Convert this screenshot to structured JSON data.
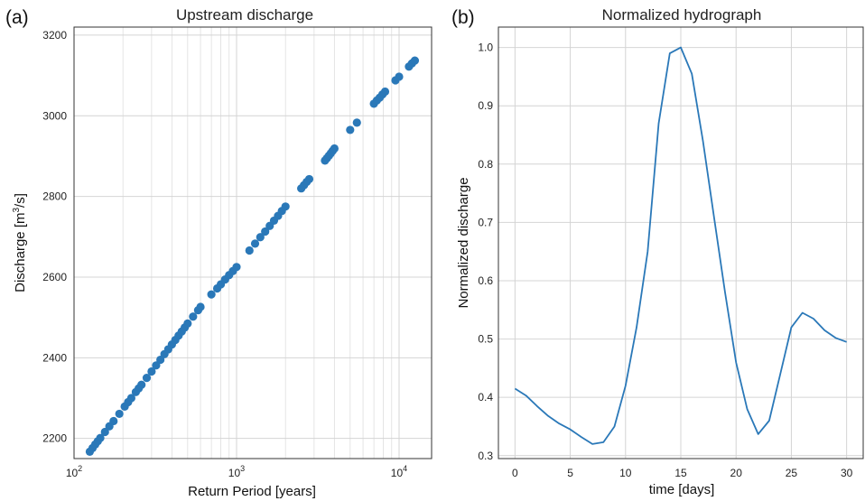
{
  "chart_data": [
    {
      "type": "scatter",
      "panel_label": "(a)",
      "title": "Upstream discharge",
      "xlabel": "Return Period [years]",
      "ylabel_main": "Discharge [m",
      "ylabel_sup": "3",
      "ylabel_end": "/s]",
      "xscale": "log",
      "xlim": [
        100,
        15850
      ],
      "ylim": [
        2150,
        3220
      ],
      "grid": true,
      "color": "#2a78b8",
      "xticks": [
        {
          "value": 100,
          "base": "10",
          "exp": "2"
        },
        {
          "value": 1000,
          "base": "10",
          "exp": "3"
        },
        {
          "value": 10000,
          "base": "10",
          "exp": "4"
        }
      ],
      "yticks": [
        2200,
        2400,
        2600,
        2800,
        3000,
        3200
      ],
      "x": [
        125,
        130,
        135,
        140,
        145,
        155,
        165,
        175,
        190,
        205,
        215,
        225,
        240,
        250,
        260,
        280,
        300,
        320,
        340,
        360,
        380,
        400,
        420,
        440,
        460,
        480,
        500,
        540,
        580,
        600,
        700,
        760,
        800,
        850,
        900,
        950,
        1000,
        1200,
        1300,
        1400,
        1500,
        1600,
        1700,
        1800,
        1900,
        2000,
        2500,
        2600,
        2700,
        2800,
        3500,
        3600,
        3700,
        3800,
        3900,
        4000,
        5000,
        5500,
        7000,
        7300,
        7600,
        7900,
        8200,
        9500,
        10000,
        11500,
        12000,
        12500
      ],
      "y": [
        2167,
        2176,
        2185,
        2193,
        2201,
        2216,
        2230,
        2243,
        2261,
        2279,
        2290,
        2300,
        2315,
        2324,
        2333,
        2350,
        2366,
        2381,
        2395,
        2409,
        2421,
        2433,
        2444,
        2455,
        2465,
        2475,
        2485,
        2502,
        2518,
        2526,
        2557,
        2572,
        2582,
        2594,
        2605,
        2615,
        2625,
        2666,
        2683,
        2699,
        2713,
        2727,
        2740,
        2752,
        2764,
        2775,
        2820,
        2828,
        2836,
        2843,
        2889,
        2895,
        2901,
        2907,
        2913,
        2919,
        2965,
        2983,
        3030,
        3038,
        3045,
        3053,
        3060,
        3088,
        3097,
        3122,
        3130,
        3137
      ]
    },
    {
      "type": "line",
      "panel_label": "(b)",
      "title": "Normalized hydrograph",
      "xlabel": "time [days]",
      "ylabel": "Normalized discharge",
      "xlim": [
        -1.5,
        31.5
      ],
      "ylim": [
        0.295,
        1.035
      ],
      "grid": true,
      "color": "#2a78b8",
      "xticks": [
        0,
        5,
        10,
        15,
        20,
        25,
        30
      ],
      "yticks": [
        "0.3",
        "0.4",
        "0.5",
        "0.6",
        "0.7",
        "0.8",
        "0.9",
        "1.0"
      ],
      "x": [
        0,
        1,
        2,
        3,
        4,
        5,
        6,
        7,
        8,
        9,
        10,
        11,
        12,
        13,
        14,
        15,
        16,
        17,
        18,
        19,
        20,
        21,
        22,
        23,
        24,
        25,
        26,
        27,
        28,
        29,
        30
      ],
      "y": [
        0.415,
        0.403,
        0.385,
        0.368,
        0.355,
        0.345,
        0.332,
        0.32,
        0.323,
        0.35,
        0.42,
        0.52,
        0.65,
        0.87,
        0.99,
        1.0,
        0.955,
        0.84,
        0.71,
        0.58,
        0.46,
        0.38,
        0.337,
        0.36,
        0.44,
        0.52,
        0.545,
        0.535,
        0.515,
        0.502,
        0.495
      ]
    }
  ]
}
